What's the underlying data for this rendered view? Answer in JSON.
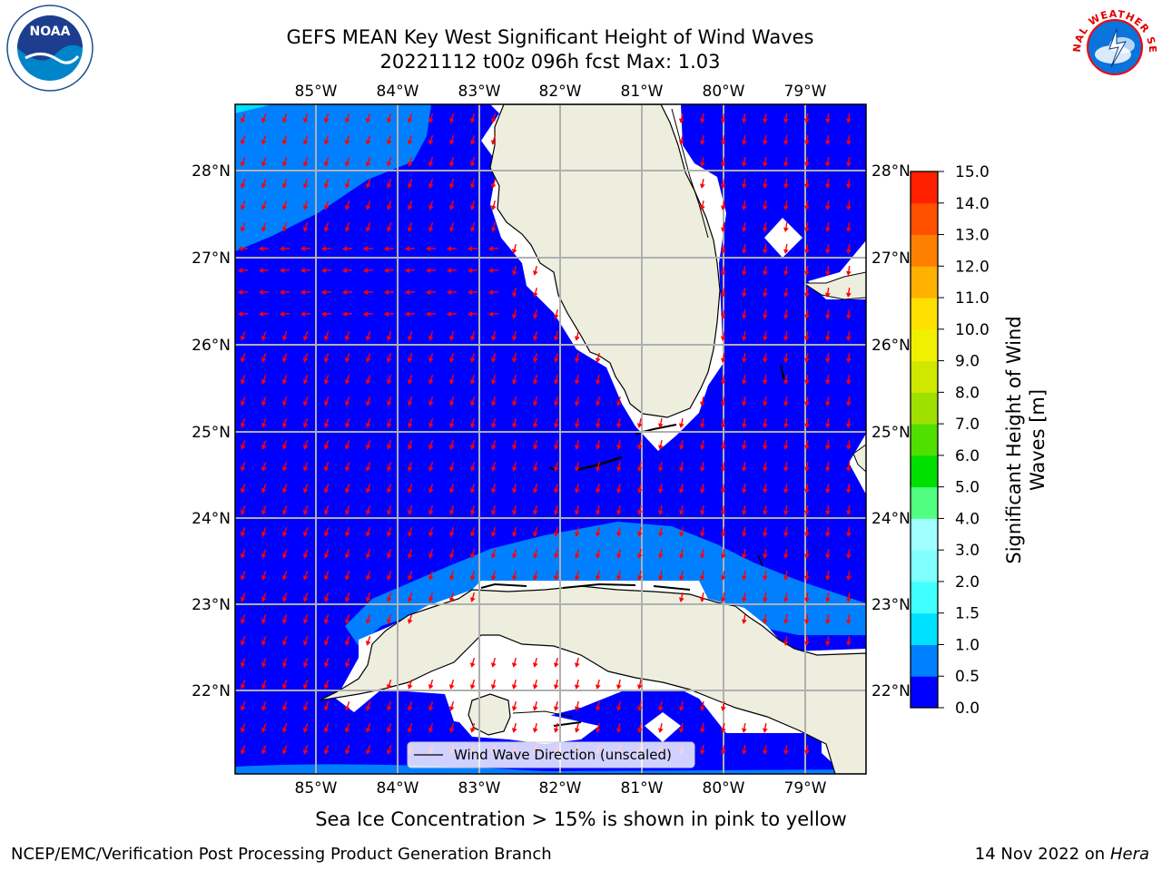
{
  "header": {
    "title_line1": "GEFS MEAN Key West Significant Height of Wind Waves",
    "title_line2": "20221112 t00z 096h fcst   Max: 1.03"
  },
  "logos": {
    "noaa_text": "NOAA",
    "nws_text": "NATIONAL WEATHER SERVICE"
  },
  "map": {
    "lon_ticks": [
      "85°W",
      "84°W",
      "83°W",
      "82°W",
      "81°W",
      "80°W",
      "79°W"
    ],
    "lat_ticks": [
      "28°N",
      "27°N",
      "26°N",
      "25°N",
      "24°N",
      "23°N",
      "22°N"
    ],
    "legend_label": "Wind Wave Direction (unscaled)",
    "colors": {
      "ocean_low": "#0000ff",
      "ocean_mid": "#0080ff",
      "land": "#eeeedf",
      "arrows": "#ff0000",
      "grid": "#b0b0b0"
    }
  },
  "colorbar": {
    "label_line1": "Significant Height of Wind",
    "label_line2": "Waves [m]",
    "ticks": [
      "0.0",
      "0.5",
      "1.0",
      "1.5",
      "2.0",
      "3.0",
      "4.0",
      "5.0",
      "6.0",
      "7.0",
      "8.0",
      "9.0",
      "10.0",
      "11.0",
      "12.0",
      "13.0",
      "14.0",
      "15.0"
    ],
    "colors": [
      "#0000ff",
      "#0080ff",
      "#00e0ff",
      "#40ffff",
      "#80ffff",
      "#a0ffff",
      "#50ff80",
      "#00e000",
      "#50e000",
      "#a0e000",
      "#d0e800",
      "#f0f000",
      "#ffe000",
      "#ffb000",
      "#ff8000",
      "#ff5000",
      "#ff2000",
      "#ff0000"
    ]
  },
  "note": "Sea Ice Concentration > 15% is shown in pink to yellow",
  "footer": {
    "left": "NCEP/EMC/Verification Post Processing Product Generation Branch",
    "right_date": "14 Nov 2022 on",
    "right_host": "Hera"
  }
}
